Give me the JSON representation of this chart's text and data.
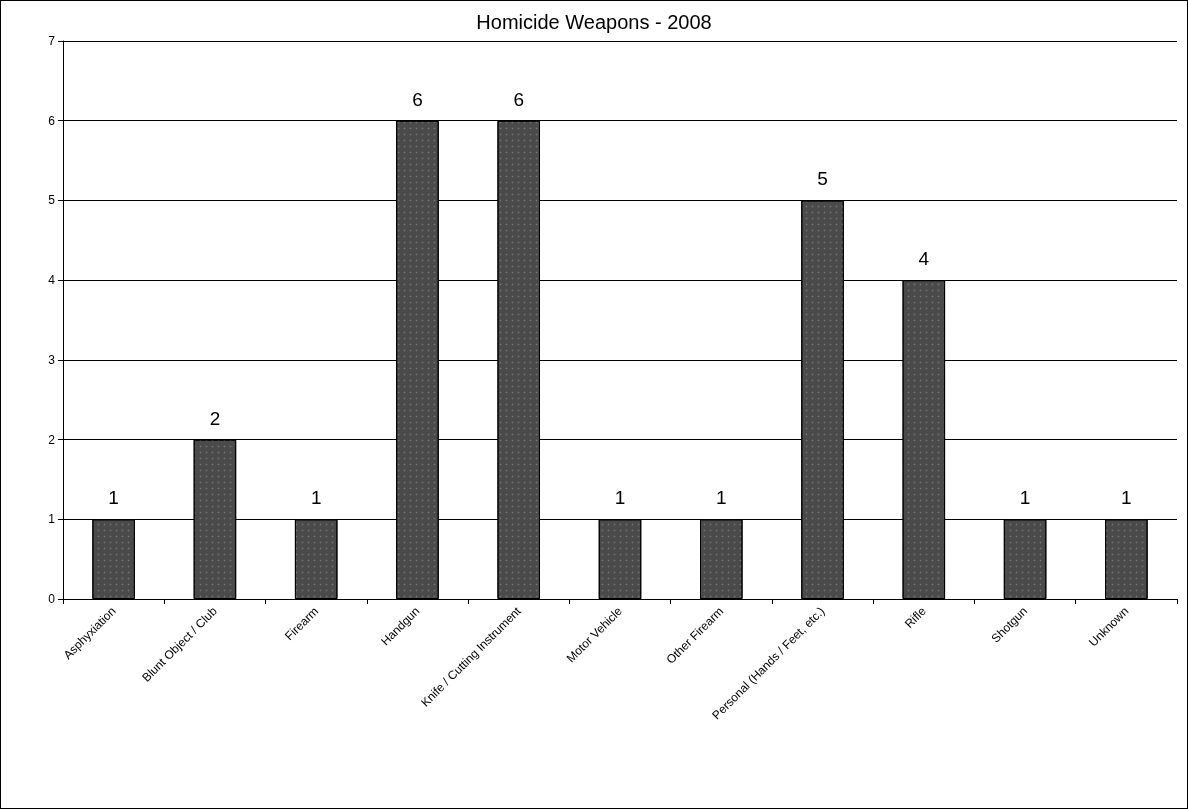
{
  "chart_data": {
    "type": "bar",
    "title": "Homicide Weapons - 2008",
    "categories": [
      "Asphyxiation",
      "Blunt Object / Club",
      "Firearm",
      "Handgun",
      "Knife / Cutting Instrument",
      "Motor Vehicle",
      "Other Firearm",
      "Personal (Hands / Feet, etc.)",
      "Rifle",
      "Shotgun",
      "Unknown"
    ],
    "values": [
      1,
      2,
      1,
      6,
      6,
      1,
      1,
      5,
      4,
      1,
      1
    ],
    "color": "#4a4a4a",
    "ylim": [
      0,
      7
    ],
    "yticks": [
      0,
      1,
      2,
      3,
      4,
      5,
      6,
      7
    ],
    "grid": "y",
    "data_labels": true
  }
}
